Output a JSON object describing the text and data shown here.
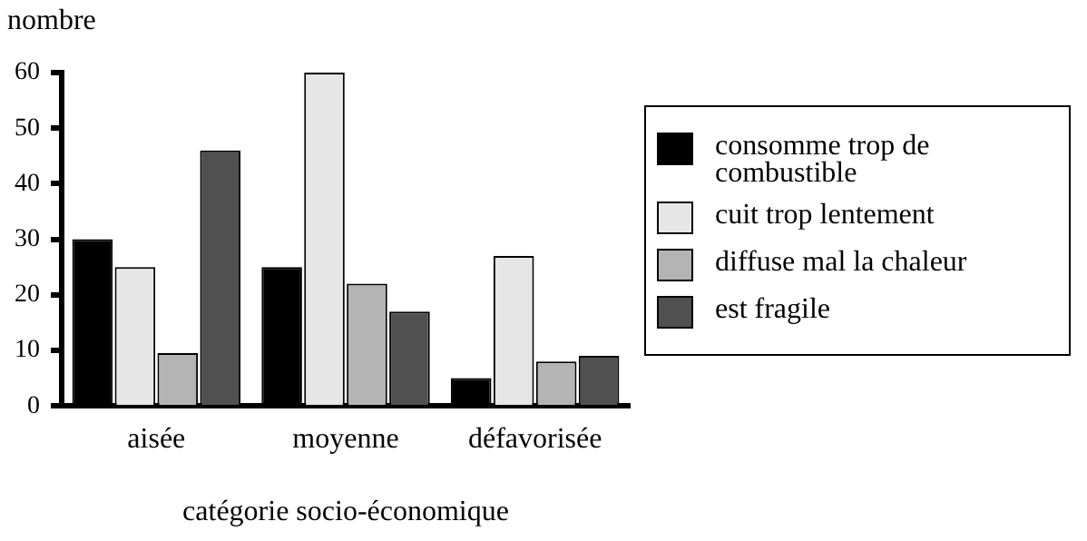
{
  "chart_data": {
    "type": "bar",
    "ylabel": "nombre",
    "xlabel": "catégorie socio-économique",
    "categories": [
      "aisée",
      "moyenne",
      "défavorisée"
    ],
    "series": [
      {
        "name": "consomme trop de combustible",
        "color": "#000000",
        "values": [
          30,
          25,
          5
        ]
      },
      {
        "name": "cuit trop lentement",
        "color": "#e6e6e6",
        "values": [
          25,
          60,
          27
        ]
      },
      {
        "name": "diffuse mal la chaleur",
        "color": "#b4b4b4",
        "values": [
          9.5,
          22,
          8
        ]
      },
      {
        "name": "est fragile",
        "color": "#505050",
        "values": [
          46,
          17,
          9
        ]
      }
    ],
    "ylim": [
      0,
      60
    ],
    "yticks": [
      0,
      10,
      20,
      30,
      40,
      50,
      60
    ],
    "grid": false,
    "legend": "right"
  }
}
